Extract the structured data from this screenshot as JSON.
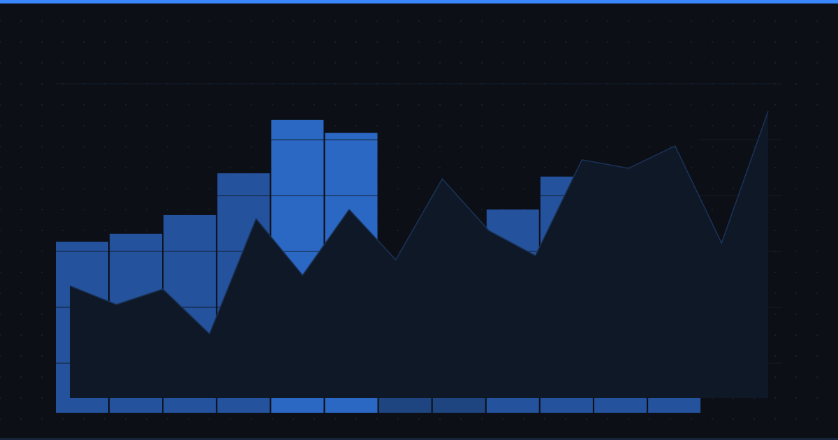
{
  "colors": {
    "background": "#0c0f16",
    "accent_bar": "#3a86ff",
    "bar": "#24529c",
    "bar_highlight": "#2b68c4",
    "bar_dim": "#1f4580",
    "area_fill": "#0f1827",
    "area_stroke": "#1a3358",
    "grid": "#141c2a"
  },
  "chart_data": [
    {
      "type": "bar",
      "values": [
        52,
        54.4,
        60.1,
        72.8,
        89,
        85.1,
        45,
        40,
        61.8,
        71.8,
        65,
        58
      ],
      "highlight": [
        false,
        false,
        false,
        false,
        true,
        true,
        false,
        false,
        false,
        false,
        false,
        false
      ],
      "dim": [
        false,
        false,
        false,
        false,
        false,
        false,
        true,
        true,
        false,
        false,
        false,
        false
      ],
      "ylim": [
        0,
        100
      ],
      "grid": true
    },
    {
      "type": "area",
      "values": [
        38.6,
        32.9,
        37.6,
        24,
        59,
        41.8,
        61.8,
        46.5,
        71.1,
        55.4,
        47.8,
        76.9,
        74.3,
        81.1,
        51.6,
        91.7
      ],
      "ylim": [
        0,
        100
      ]
    }
  ]
}
